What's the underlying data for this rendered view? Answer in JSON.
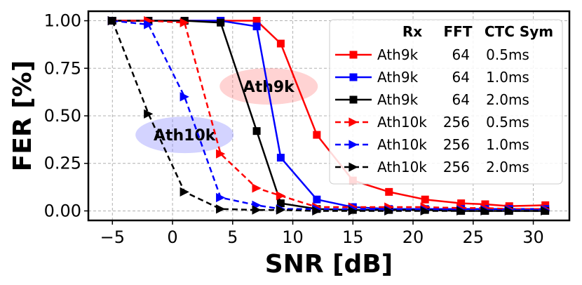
{
  "chart_data": {
    "type": "line",
    "title": "",
    "xlabel": "SNR [dB]",
    "ylabel": "FER [%]",
    "xlim": [
      -7,
      33
    ],
    "ylim": [
      -0.05,
      1.05
    ],
    "xticks": [
      -5,
      0,
      5,
      10,
      15,
      20,
      25,
      30
    ],
    "xtick_labels": [
      "−5",
      "0",
      "5",
      "10",
      "15",
      "20",
      "25",
      "30"
    ],
    "yticks": [
      0.0,
      0.25,
      0.5,
      0.75,
      1.0
    ],
    "ytick_labels": [
      "0.00",
      "0.25",
      "0.50",
      "0.75",
      "1.00"
    ],
    "grid": true,
    "legend_position": "top-right",
    "legend_header": [
      "Rx",
      "FFT",
      "CTC Sym"
    ],
    "series": [
      {
        "name": "Ath9k 64 0.5ms",
        "rx": "Ath9k",
        "fft": "64",
        "ctc": "0.5ms",
        "color": "#ff0000",
        "dash": "solid",
        "marker": "square",
        "x": [
          -5,
          -2,
          1,
          4,
          7,
          9,
          12,
          15,
          18,
          21,
          24,
          26,
          28,
          31
        ],
        "y": [
          1.0,
          1.0,
          1.0,
          1.0,
          1.0,
          0.88,
          0.4,
          0.16,
          0.1,
          0.06,
          0.04,
          0.035,
          0.025,
          0.03
        ]
      },
      {
        "name": "Ath9k 64 1.0ms",
        "rx": "Ath9k",
        "fft": "64",
        "ctc": "1.0ms",
        "color": "#0000ff",
        "dash": "solid",
        "marker": "square",
        "x": [
          -5,
          -2,
          1,
          4,
          7,
          9,
          12,
          15,
          18,
          21,
          24,
          26,
          28,
          31
        ],
        "y": [
          1.0,
          1.0,
          1.0,
          1.0,
          0.97,
          0.28,
          0.06,
          0.02,
          0.01,
          0.01,
          0.01,
          0.01,
          0.01,
          0.01
        ]
      },
      {
        "name": "Ath9k 64 2.0ms",
        "rx": "Ath9k",
        "fft": "64",
        "ctc": "2.0ms",
        "color": "#000000",
        "dash": "solid",
        "marker": "square",
        "x": [
          -5,
          -2,
          1,
          4,
          7,
          9,
          12,
          15,
          18,
          21,
          24,
          26,
          28,
          31
        ],
        "y": [
          1.0,
          1.0,
          1.0,
          0.99,
          0.42,
          0.04,
          0.01,
          0.005,
          0.005,
          0.005,
          0.0,
          0.0,
          0.0,
          0.0
        ]
      },
      {
        "name": "Ath10k 256 0.5ms",
        "rx": "Ath10k",
        "fft": "256",
        "ctc": "0.5ms",
        "color": "#ff0000",
        "dash": "dashed",
        "marker": "triangle-right",
        "x": [
          -5,
          -2,
          1,
          4,
          7,
          9,
          12,
          15,
          18,
          21,
          24,
          26,
          28,
          31
        ],
        "y": [
          1.0,
          1.0,
          0.99,
          0.3,
          0.12,
          0.08,
          0.02,
          0.02,
          0.02,
          0.02,
          0.015,
          0.015,
          0.01,
          0.01
        ]
      },
      {
        "name": "Ath10k 256 1.0ms",
        "rx": "Ath10k",
        "fft": "256",
        "ctc": "1.0ms",
        "color": "#0000ff",
        "dash": "dashed",
        "marker": "triangle-right",
        "x": [
          -5,
          -2,
          1,
          4,
          7,
          9,
          12,
          15,
          18,
          21,
          24,
          26,
          28,
          31
        ],
        "y": [
          1.0,
          0.98,
          0.6,
          0.07,
          0.03,
          0.01,
          0.01,
          0.01,
          0.005,
          0.005,
          0.005,
          0.005,
          0.005,
          0.005
        ]
      },
      {
        "name": "Ath10k 256 2.0ms",
        "rx": "Ath10k",
        "fft": "256",
        "ctc": "2.0ms",
        "color": "#000000",
        "dash": "dashed",
        "marker": "triangle-right",
        "x": [
          -5,
          -2,
          1,
          4,
          7,
          9,
          12,
          15,
          18,
          21,
          24,
          26,
          28,
          31
        ],
        "y": [
          1.0,
          0.51,
          0.1,
          0.01,
          0.005,
          0.005,
          0.0,
          0.0,
          0.0,
          0.0,
          0.0,
          0.0,
          0.0,
          0.0
        ]
      }
    ],
    "annotations": [
      {
        "text": "Ath9k",
        "x": 8.0,
        "y": 0.655,
        "fill": "#ff8080"
      },
      {
        "text": "Ath10k",
        "x": 1.0,
        "y": 0.4,
        "fill": "#8080ff"
      }
    ]
  }
}
